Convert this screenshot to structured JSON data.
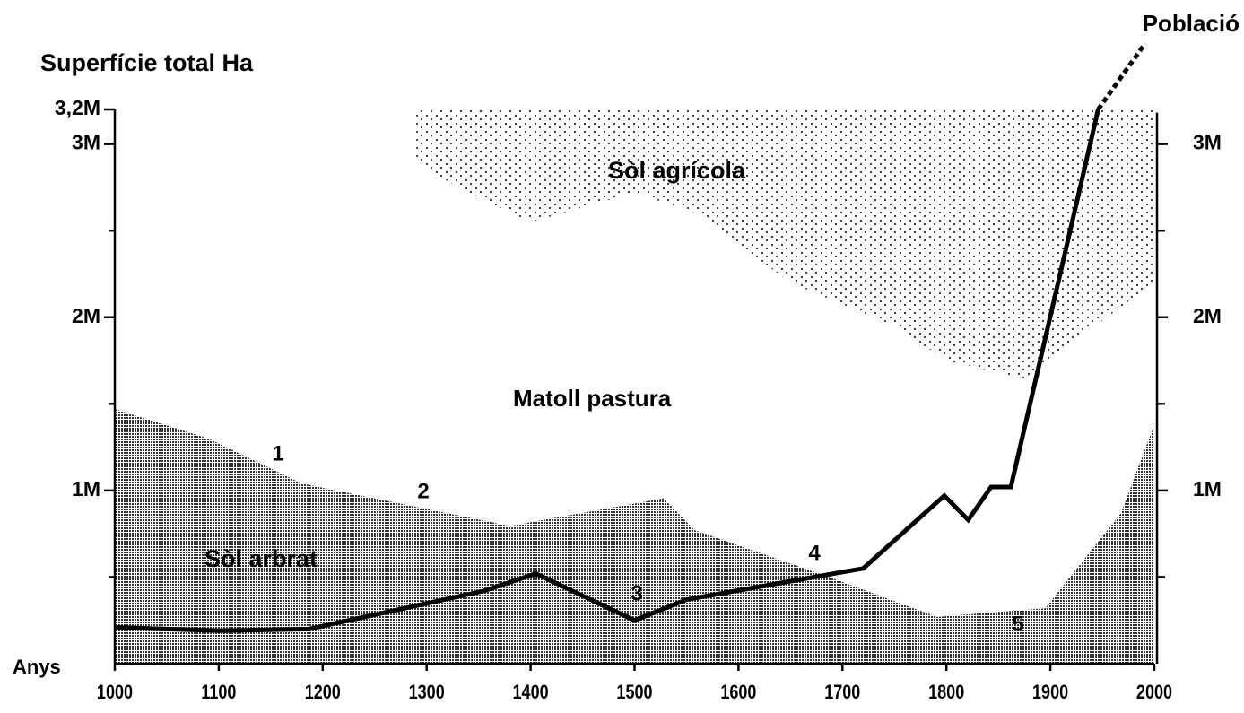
{
  "chart_data": {
    "type": "area",
    "title": "Superfície total Ha",
    "x_label": "Anys",
    "xlim": [
      1000,
      2000
    ],
    "xticks": [
      1000,
      1100,
      1200,
      1300,
      1400,
      1500,
      1600,
      1700,
      1800,
      1900,
      2000
    ],
    "ylim": [
      0,
      3200000
    ],
    "yticks": [
      {
        "value": 1000000,
        "label": "1M"
      },
      {
        "value": 2000000,
        "label": "2M"
      },
      {
        "value": 3000000,
        "label": "3M"
      },
      {
        "value": 3200000,
        "label": "3,2M"
      }
    ],
    "y_minor_ticks": [
      500000,
      1500000,
      2500000
    ],
    "y2lim": [
      0,
      3200000
    ],
    "y2ticks": [
      {
        "value": 1000000,
        "label": "1M"
      },
      {
        "value": 2000000,
        "label": "2M"
      },
      {
        "value": 3000000,
        "label": "3M"
      }
    ],
    "y2_minor_ticks": [
      500000,
      1500000,
      2500000
    ],
    "series": [
      {
        "name": "Sòl arbrat",
        "type": "area",
        "color": "#555555",
        "x": [
          1000,
          1090,
          1180,
          1380,
          1528,
          1558,
          1692,
          1791,
          1895,
          1968,
          2000
        ],
        "values": [
          1470000,
          1300000,
          1040000,
          795000,
          955000,
          770000,
          490000,
          270000,
          320000,
          870000,
          1380000
        ]
      },
      {
        "name": "Sòl agrícola",
        "type": "area_top",
        "color": "#000000",
        "x": [
          1290,
          1330,
          1400,
          1500,
          1560,
          1650,
          1750,
          1800,
          1880,
          1920,
          2000
        ],
        "values": [
          2900000,
          2750000,
          2550000,
          2720000,
          2600000,
          2200000,
          1950000,
          1750000,
          1640000,
          1850000,
          2200000
        ]
      },
      {
        "name": "Població",
        "type": "line",
        "axis": "y2",
        "color": "#000000",
        "x": [
          1000,
          1100,
          1187,
          1355,
          1405,
          1500,
          1550,
          1720,
          1798,
          1821,
          1843,
          1862,
          1946
        ],
        "values": [
          210000,
          190000,
          200000,
          420000,
          520000,
          250000,
          370000,
          550000,
          970000,
          830000,
          1020000,
          1020000,
          3200000
        ]
      },
      {
        "type": "line",
        "axis": "y2",
        "style": "dashed",
        "color": "#000000",
        "x": [
          1946,
          1991
        ],
        "values": [
          3200000,
          3580000
        ]
      }
    ],
    "annotations": [
      "Matoll pastura",
      "1",
      "2",
      "3",
      "4",
      "5"
    ]
  }
}
